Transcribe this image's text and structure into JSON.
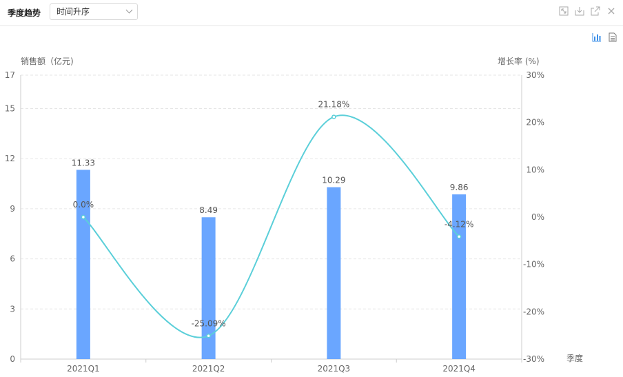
{
  "header": {
    "title": "季度趋势",
    "sort_value": "时间升序"
  },
  "icons": {
    "header": [
      "expand-icon",
      "download-icon",
      "open-external-icon",
      "close-icon"
    ],
    "toolbar": [
      "bar-chart-icon",
      "table-view-icon"
    ]
  },
  "colors": {
    "bar": "#6aa6ff",
    "line": "#5bcfd9",
    "grid": "#e6e6e6",
    "icon_active": "#3b8fe8"
  },
  "chart_data": {
    "type": "bar",
    "categories": [
      "2021Q1",
      "2021Q2",
      "2021Q3",
      "2021Q4"
    ],
    "xlabel": "季度",
    "ylabel": "销售额（亿元)",
    "ylabel_right": "增长率 (%)",
    "ylim": [
      0,
      17
    ],
    "ylim_right": [
      -30,
      30
    ],
    "yticks": [
      0,
      3,
      6,
      9,
      12,
      15,
      17
    ],
    "yticks_right": [
      -30,
      -20,
      -10,
      0,
      10,
      20,
      30
    ],
    "grid": true,
    "series": [
      {
        "type": "bar",
        "axis": "left",
        "values": [
          11.33,
          8.49,
          10.29,
          9.86
        ],
        "labels": [
          "11.33",
          "8.49",
          "10.29",
          "9.86"
        ]
      },
      {
        "type": "line",
        "axis": "right",
        "smooth": true,
        "values": [
          0.0,
          -25.09,
          21.18,
          -4.12
        ],
        "labels": [
          "0.0%",
          "-25.09%",
          "21.18%",
          "-4.12%"
        ]
      }
    ]
  }
}
